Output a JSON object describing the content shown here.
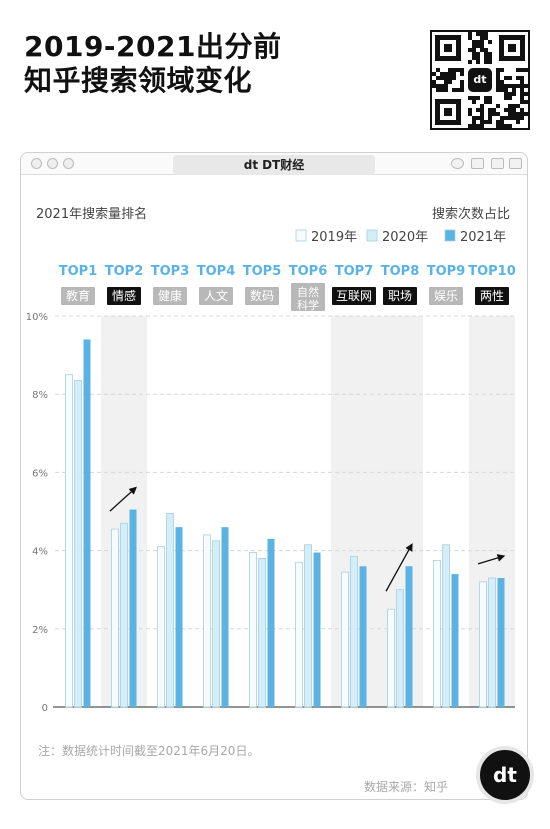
{
  "header": {
    "title_line1": "2019-2021出分前",
    "title_line2": "知乎搜索领域变化"
  },
  "window": {
    "tab_logo": "dt",
    "tab_label": "DT财经"
  },
  "qr": {
    "center_logo": "dt"
  },
  "colors": {
    "y2019": "#f6fbfd",
    "y2020": "#d4eef8",
    "y2021": "#5ab3e2",
    "bar_edge": "#a8cfe0",
    "top_label": "#5ab3e2",
    "tag_gray": "#b8b8b8",
    "tag_black": "#111111",
    "band": "#f1f1f1"
  },
  "chart_data": {
    "type": "bar",
    "ylabel_left": "2021年搜索量排名",
    "ylabel_right": "搜索次数占比",
    "ylim": [
      0,
      10
    ],
    "yticks": [
      "0",
      "2%",
      "4%",
      "6%",
      "8%",
      "10%"
    ],
    "ytick_values": [
      0,
      2,
      4,
      6,
      8,
      10
    ],
    "grid": true,
    "legend_position": "top-right",
    "legend": [
      "2019年",
      "2020年",
      "2021年"
    ],
    "ranks": [
      "TOP1",
      "TOP2",
      "TOP3",
      "TOP4",
      "TOP5",
      "TOP6",
      "TOP7",
      "TOP8",
      "TOP9",
      "TOP10"
    ],
    "categories": [
      "教育",
      "情感",
      "健康",
      "人文",
      "数码",
      "自然科学",
      "互联网",
      "职场",
      "娱乐",
      "两性"
    ],
    "category_lines": [
      [
        "教育"
      ],
      [
        "情感"
      ],
      [
        "健康"
      ],
      [
        "人文"
      ],
      [
        "数码"
      ],
      [
        "自然",
        "科学"
      ],
      [
        "互联网"
      ],
      [
        "职场"
      ],
      [
        "娱乐"
      ],
      [
        "两性"
      ]
    ],
    "tag_style": [
      "gray",
      "black",
      "gray",
      "gray",
      "gray",
      "gray",
      "black",
      "black",
      "gray",
      "black"
    ],
    "trend_arrows": [
      "TOP2",
      "TOP8",
      "TOP10"
    ],
    "series": [
      {
        "name": "2019年",
        "values": [
          8.5,
          4.55,
          4.1,
          4.4,
          3.95,
          3.7,
          3.45,
          2.5,
          3.75,
          3.2
        ]
      },
      {
        "name": "2020年",
        "values": [
          8.35,
          4.7,
          4.95,
          4.25,
          3.8,
          4.15,
          3.85,
          3.0,
          4.15,
          3.3
        ]
      },
      {
        "name": "2021年",
        "values": [
          9.4,
          5.05,
          4.6,
          4.6,
          4.3,
          3.95,
          3.6,
          3.6,
          3.4,
          3.3
        ]
      }
    ]
  },
  "footer": {
    "note": "注：数据统计时间截至2021年6月20日。",
    "source": "数据来源：知乎",
    "logo": "dt"
  }
}
